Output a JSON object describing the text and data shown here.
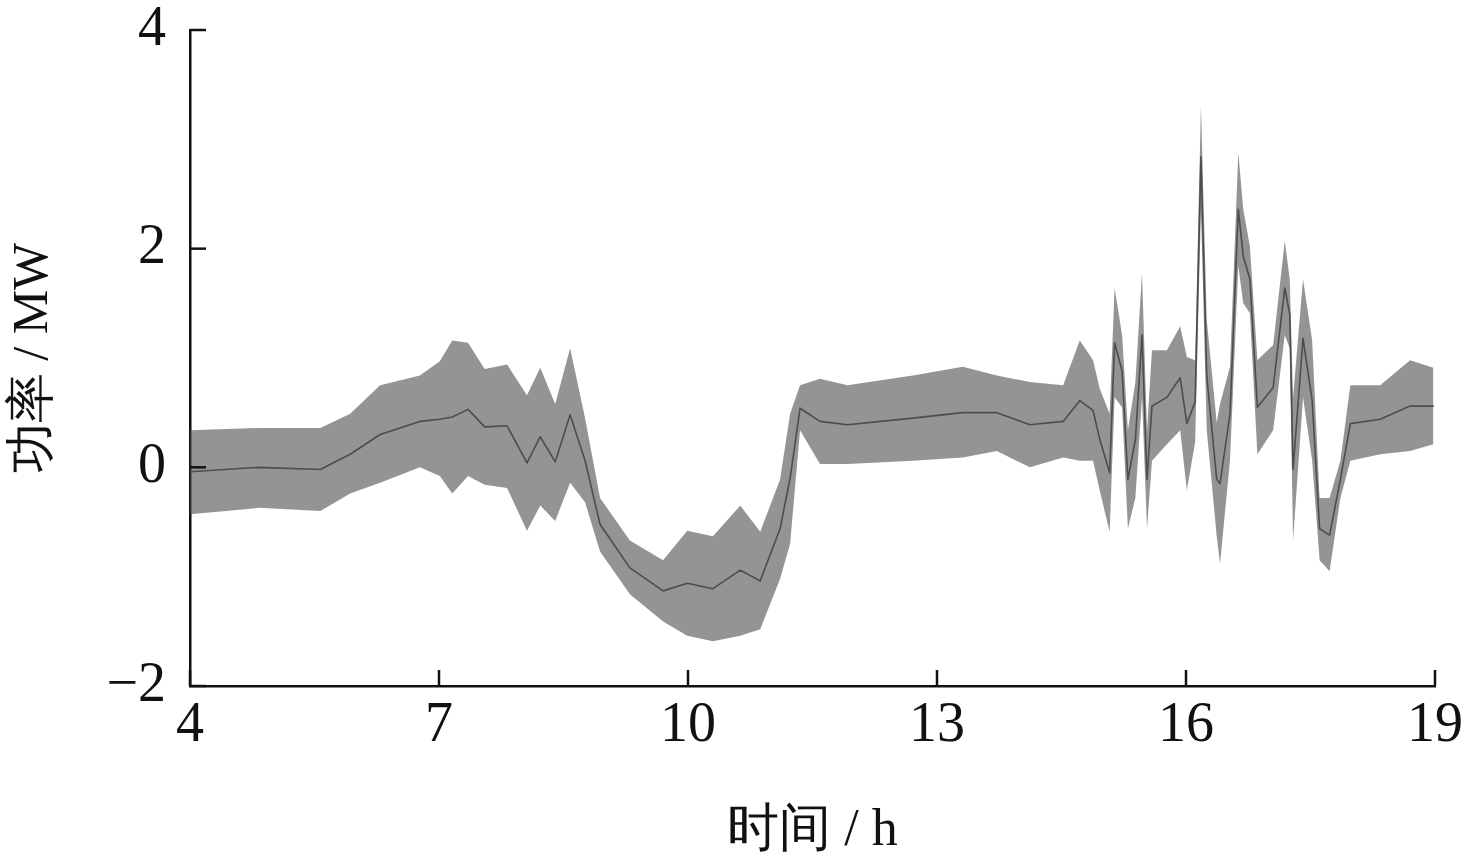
{
  "chart_data": {
    "type": "line",
    "xlabel": "时间 / h",
    "ylabel": "功率 / MW",
    "x": [
      4.0,
      4.84,
      5.57,
      5.93,
      6.29,
      6.77,
      7.01,
      7.16,
      7.35,
      7.55,
      7.82,
      8.06,
      8.22,
      8.4,
      8.58,
      8.76,
      8.94,
      9.3,
      9.7,
      9.99,
      10.3,
      10.63,
      10.87,
      11.11,
      11.23,
      11.35,
      11.59,
      11.92,
      12.71,
      13.31,
      13.72,
      14.12,
      14.52,
      14.72,
      14.88,
      14.96,
      15.08,
      15.14,
      15.23,
      15.3,
      15.39,
      15.47,
      15.53,
      15.59,
      15.77,
      15.93,
      16.01,
      16.11,
      16.18,
      16.25,
      16.37,
      16.41,
      16.53,
      16.63,
      16.69,
      16.77,
      16.86,
      17.05,
      17.19,
      17.25,
      17.29,
      17.41,
      17.52,
      17.61,
      17.73,
      17.86,
      17.98,
      18.34,
      18.7,
      18.98
    ],
    "series": [
      {
        "color": "#4d4d4d",
        "values": [
          -0.04,
          0.0,
          -0.02,
          0.12,
          0.3,
          0.42,
          0.44,
          0.46,
          0.53,
          0.37,
          0.38,
          0.04,
          0.28,
          0.05,
          0.48,
          0.06,
          -0.52,
          -0.92,
          -1.13,
          -1.06,
          -1.11,
          -0.94,
          -1.04,
          -0.56,
          -0.1,
          0.54,
          0.42,
          0.39,
          0.45,
          0.5,
          0.5,
          0.39,
          0.42,
          0.61,
          0.52,
          0.26,
          -0.05,
          1.14,
          0.88,
          -0.11,
          0.25,
          1.21,
          -0.11,
          0.56,
          0.64,
          0.82,
          0.4,
          0.6,
          2.84,
          0.84,
          -0.11,
          -0.15,
          0.49,
          2.36,
          1.93,
          1.72,
          0.55,
          0.73,
          1.64,
          1.4,
          -0.02,
          1.18,
          0.61,
          -0.56,
          -0.62,
          -0.11,
          0.4,
          0.44,
          0.56,
          0.56
        ],
        "upper": [
          0.34,
          0.36,
          0.36,
          0.49,
          0.75,
          0.84,
          0.97,
          1.16,
          1.14,
          0.9,
          0.94,
          0.66,
          0.91,
          0.58,
          1.09,
          0.45,
          -0.28,
          -0.67,
          -0.85,
          -0.58,
          -0.63,
          -0.35,
          -0.59,
          -0.11,
          0.49,
          0.75,
          0.81,
          0.75,
          0.84,
          0.92,
          0.84,
          0.78,
          0.75,
          1.16,
          0.98,
          0.72,
          0.49,
          1.64,
          1.21,
          0.34,
          0.78,
          1.78,
          0.34,
          1.07,
          1.07,
          1.29,
          1.01,
          0.98,
          3.31,
          1.35,
          0.41,
          0.58,
          0.92,
          2.88,
          2.36,
          2.02,
          0.98,
          1.12,
          2.07,
          1.72,
          0.64,
          1.72,
          1.16,
          -0.28,
          -0.28,
          0.06,
          0.75,
          0.75,
          0.98,
          0.91
        ],
        "lower": [
          -0.43,
          -0.37,
          -0.4,
          -0.24,
          -0.14,
          0.0,
          -0.08,
          -0.24,
          -0.08,
          -0.16,
          -0.19,
          -0.58,
          -0.35,
          -0.49,
          -0.14,
          -0.32,
          -0.77,
          -1.16,
          -1.41,
          -1.54,
          -1.59,
          -1.54,
          -1.48,
          -1.02,
          -0.7,
          0.34,
          0.03,
          0.03,
          0.06,
          0.09,
          0.15,
          0.0,
          0.09,
          0.06,
          0.06,
          -0.21,
          -0.59,
          0.64,
          0.55,
          -0.56,
          -0.28,
          0.64,
          -0.56,
          0.06,
          0.21,
          0.34,
          -0.21,
          0.23,
          2.36,
          0.34,
          -0.63,
          -0.88,
          0.06,
          1.84,
          1.5,
          1.41,
          0.12,
          0.34,
          1.21,
          1.09,
          -0.67,
          0.64,
          0.06,
          -0.85,
          -0.95,
          -0.28,
          0.06,
          0.12,
          0.15,
          0.21
        ]
      }
    ],
    "xlim": [
      4,
      19
    ],
    "ylim": [
      -2,
      4
    ],
    "xticks": [
      4,
      7,
      10,
      13,
      16,
      19
    ],
    "yticks": [
      {
        "value": -2,
        "label": "−2"
      },
      0,
      2,
      4
    ],
    "marker": "none",
    "line_style": "solid"
  }
}
